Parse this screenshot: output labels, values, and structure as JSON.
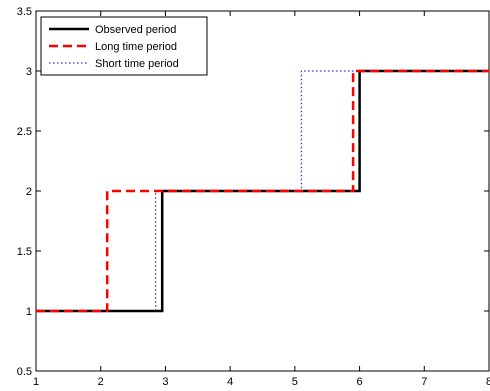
{
  "chart_data": {
    "type": "line",
    "title": "",
    "xlabel": "",
    "ylabel": "",
    "xlim": [
      1,
      8
    ],
    "ylim": [
      0.5,
      3.5
    ],
    "xticks": [
      1,
      2,
      3,
      4,
      5,
      6,
      7,
      8
    ],
    "yticks": [
      0.5,
      1,
      1.5,
      2,
      2.5,
      3,
      3.5
    ],
    "xtick_labels": [
      "1",
      "2",
      "3",
      "4",
      "5",
      "6",
      "7",
      "8"
    ],
    "ytick_labels": [
      "0.5",
      "1",
      "1.5",
      "2",
      "2.5",
      "3",
      "3.5"
    ],
    "grid": false,
    "legend_position": "top-left",
    "series": [
      {
        "name": "Observed period",
        "color": "#000000",
        "style": "solid",
        "x": [
          1,
          2.95,
          2.95,
          6.0,
          6.0,
          8
        ],
        "y": [
          1,
          1,
          2,
          2,
          3,
          3
        ]
      },
      {
        "name": "Long time period",
        "color": "#ff0000",
        "style": "dashed",
        "x": [
          1,
          2.1,
          2.1,
          5.9,
          5.9,
          8
        ],
        "y": [
          1,
          1,
          2,
          2,
          3,
          3
        ]
      },
      {
        "name": "Short time period",
        "color": "#0000ff",
        "style": "dotted",
        "x": [
          1,
          2.85,
          2.85,
          5.1,
          5.1,
          8
        ],
        "y": [
          1,
          1,
          2,
          2,
          3,
          3
        ]
      }
    ]
  }
}
